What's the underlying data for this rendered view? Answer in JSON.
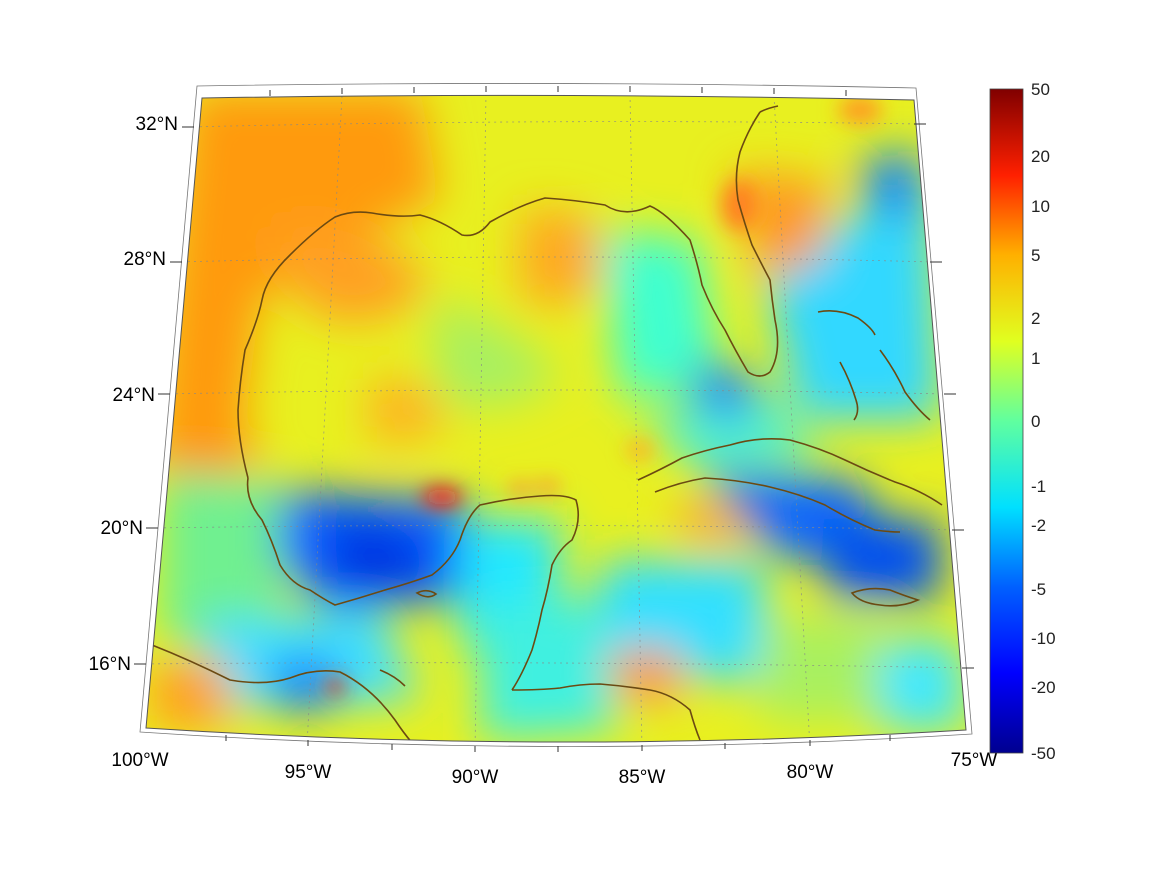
{
  "map": {
    "lon_range": [
      -100,
      -75
    ],
    "lat_range": [
      14,
      33
    ],
    "lon_ticks": [
      {
        "value": -100,
        "label": "100°W"
      },
      {
        "value": -95,
        "label": "95°W"
      },
      {
        "value": -90,
        "label": "90°W"
      },
      {
        "value": -85,
        "label": "85°W"
      },
      {
        "value": -80,
        "label": "80°W"
      },
      {
        "value": -75,
        "label": "75°W"
      }
    ],
    "lat_ticks": [
      {
        "value": 32,
        "label": "32°N"
      },
      {
        "value": 28,
        "label": "28°N"
      },
      {
        "value": 24,
        "label": "24°N"
      },
      {
        "value": 20,
        "label": "20°N"
      },
      {
        "value": 16,
        "label": "16°N"
      }
    ],
    "coastline_color": "#6b4a12",
    "colormap": "jet",
    "gridlines": "dotted",
    "grid_color": "#888888"
  },
  "colorbar": {
    "ticks": [
      "50",
      "20",
      "10",
      "5",
      "2",
      "1",
      "0",
      "-1",
      "-2",
      "-5",
      "-10",
      "-20",
      "-50"
    ]
  }
}
